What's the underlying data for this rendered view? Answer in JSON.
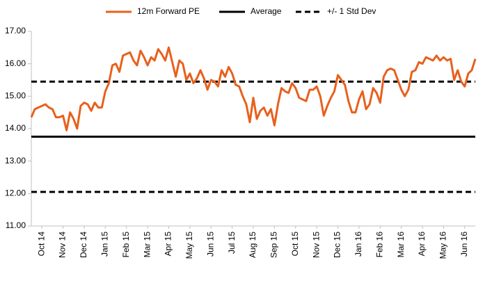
{
  "chart_data": {
    "type": "line",
    "categories": [
      null,
      null,
      null,
      "Oct 14",
      null,
      null,
      null,
      null,
      null,
      "Nov 14",
      null,
      null,
      null,
      null,
      null,
      "Dec 14",
      null,
      null,
      null,
      null,
      null,
      "Jan 15",
      null,
      null,
      null,
      null,
      null,
      "Feb 15",
      null,
      null,
      null,
      null,
      null,
      "Mar 15",
      null,
      null,
      null,
      null,
      null,
      "Apr 15",
      null,
      null,
      null,
      null,
      null,
      "May 15",
      null,
      null,
      null,
      null,
      null,
      "Jun 15",
      null,
      null,
      null,
      null,
      null,
      "Jul 15",
      null,
      null,
      null,
      null,
      null,
      "Aug 15",
      null,
      null,
      null,
      null,
      null,
      "Sep 15",
      null,
      null,
      null,
      null,
      null,
      "Oct 15",
      null,
      null,
      null,
      null,
      null,
      "Nov 15",
      null,
      null,
      null,
      null,
      null,
      "Dec 15",
      null,
      null,
      null,
      null,
      null,
      "Jan 16",
      null,
      null,
      null,
      null,
      null,
      "Feb 16",
      null,
      null,
      null,
      null,
      null,
      "Mar 16",
      null,
      null,
      null,
      null,
      null,
      "Apr 16",
      null,
      null,
      null,
      null,
      null,
      "May 16",
      null,
      null,
      null,
      null,
      null,
      "Jun 16",
      null,
      null,
      null
    ],
    "series": [
      {
        "name": "12m Forward PE",
        "color": "#e8601c",
        "values": [
          14.35,
          14.6,
          14.65,
          14.7,
          14.75,
          14.65,
          14.6,
          14.35,
          14.35,
          14.4,
          13.95,
          14.5,
          14.3,
          14.0,
          14.7,
          14.8,
          14.75,
          14.55,
          14.8,
          14.65,
          14.65,
          15.15,
          15.4,
          15.95,
          16.0,
          15.75,
          16.25,
          16.3,
          16.35,
          16.1,
          15.95,
          16.4,
          16.2,
          15.95,
          16.2,
          16.1,
          16.45,
          16.3,
          16.1,
          16.5,
          16.05,
          15.6,
          16.1,
          16.0,
          15.5,
          15.7,
          15.4,
          15.55,
          15.8,
          15.55,
          15.2,
          15.5,
          15.45,
          15.3,
          15.8,
          15.6,
          15.9,
          15.7,
          15.35,
          15.3,
          15.0,
          14.75,
          14.2,
          14.95,
          14.3,
          14.55,
          14.65,
          14.4,
          14.6,
          14.1,
          14.75,
          15.25,
          15.15,
          15.1,
          15.4,
          15.25,
          14.95,
          14.9,
          14.85,
          15.2,
          15.2,
          15.3,
          15.0,
          14.4,
          14.7,
          14.95,
          15.15,
          15.65,
          15.5,
          15.35,
          14.85,
          14.5,
          14.5,
          14.9,
          15.15,
          14.6,
          14.75,
          15.25,
          15.1,
          14.8,
          15.6,
          15.8,
          15.85,
          15.8,
          15.5,
          15.2,
          15.0,
          15.2,
          15.75,
          15.8,
          16.05,
          16.0,
          16.2,
          16.15,
          16.1,
          16.25,
          16.1,
          16.2,
          16.1,
          16.15,
          15.5,
          15.8,
          15.45,
          15.3,
          15.7,
          15.8,
          16.15
        ]
      }
    ],
    "reference_lines": [
      {
        "name": "Average",
        "color": "#000000",
        "dashed": false,
        "values": [
          13.75
        ]
      },
      {
        "name": "+/- 1 Std Dev",
        "color": "#000000",
        "dashed": true,
        "values": [
          15.45,
          12.05
        ]
      }
    ],
    "ylim": [
      11,
      17
    ],
    "yticks": [
      {
        "value": 11,
        "label": "11.00"
      },
      {
        "value": 12,
        "label": "12.00"
      },
      {
        "value": 13,
        "label": "13.00"
      },
      {
        "value": 14,
        "label": "14.00"
      },
      {
        "value": 15,
        "label": "15.00"
      },
      {
        "value": 16,
        "label": "16.00"
      },
      {
        "value": 17,
        "label": "17.00"
      }
    ],
    "grid": false,
    "legend": "top"
  }
}
